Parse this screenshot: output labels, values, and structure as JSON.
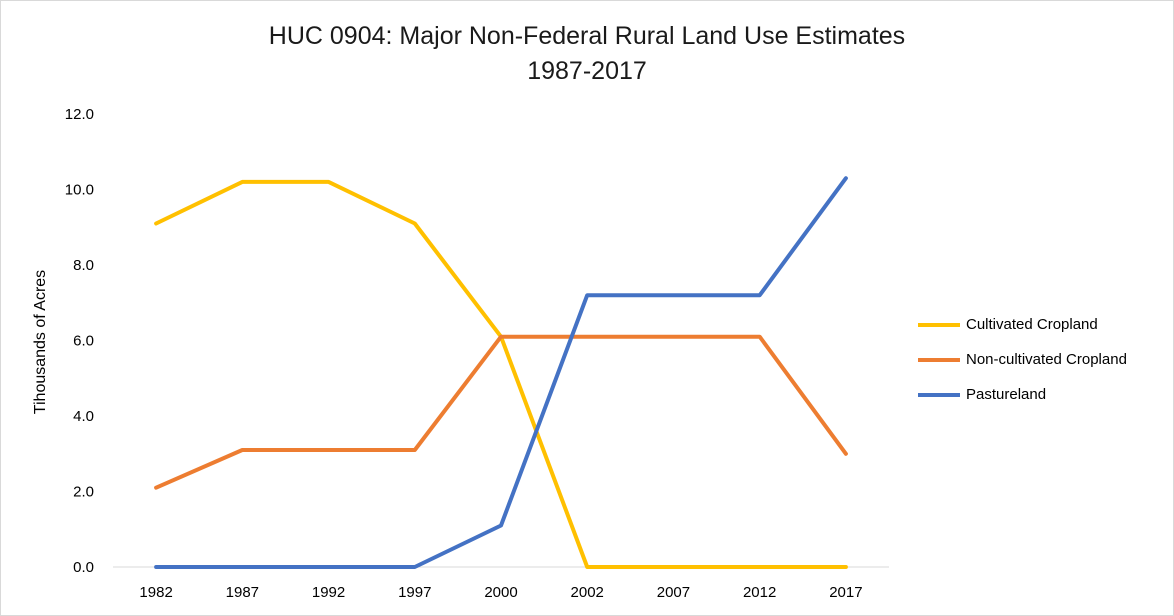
{
  "chart_data": {
    "type": "line",
    "title": "HUC 0904: Major Non-Federal Rural Land Use Estimates",
    "subtitle": "1987-2017",
    "xlabel": "",
    "ylabel": "Tihousands of Acres",
    "categories": [
      "1982",
      "1987",
      "1992",
      "1997",
      "2000",
      "2002",
      "2007",
      "2012",
      "2017"
    ],
    "ylim": [
      0,
      12
    ],
    "yticks": [
      "0.0",
      "2.0",
      "4.0",
      "6.0",
      "8.0",
      "10.0",
      "12.0"
    ],
    "grid": false,
    "legend_position": "right",
    "series": [
      {
        "name": "Cultivated Cropland",
        "color": "#FFC000",
        "values": [
          9.1,
          10.2,
          10.2,
          9.1,
          6.1,
          0,
          0,
          0,
          0
        ]
      },
      {
        "name": "Non-cultivated Cropland",
        "color": "#ED7D31",
        "values": [
          2.1,
          3.1,
          3.1,
          3.1,
          6.1,
          6.1,
          6.1,
          6.1,
          3.0
        ]
      },
      {
        "name": "Pastureland",
        "color": "#4472C4",
        "values": [
          0,
          0,
          0,
          0,
          1.1,
          7.2,
          7.2,
          7.2,
          10.3
        ]
      }
    ]
  }
}
